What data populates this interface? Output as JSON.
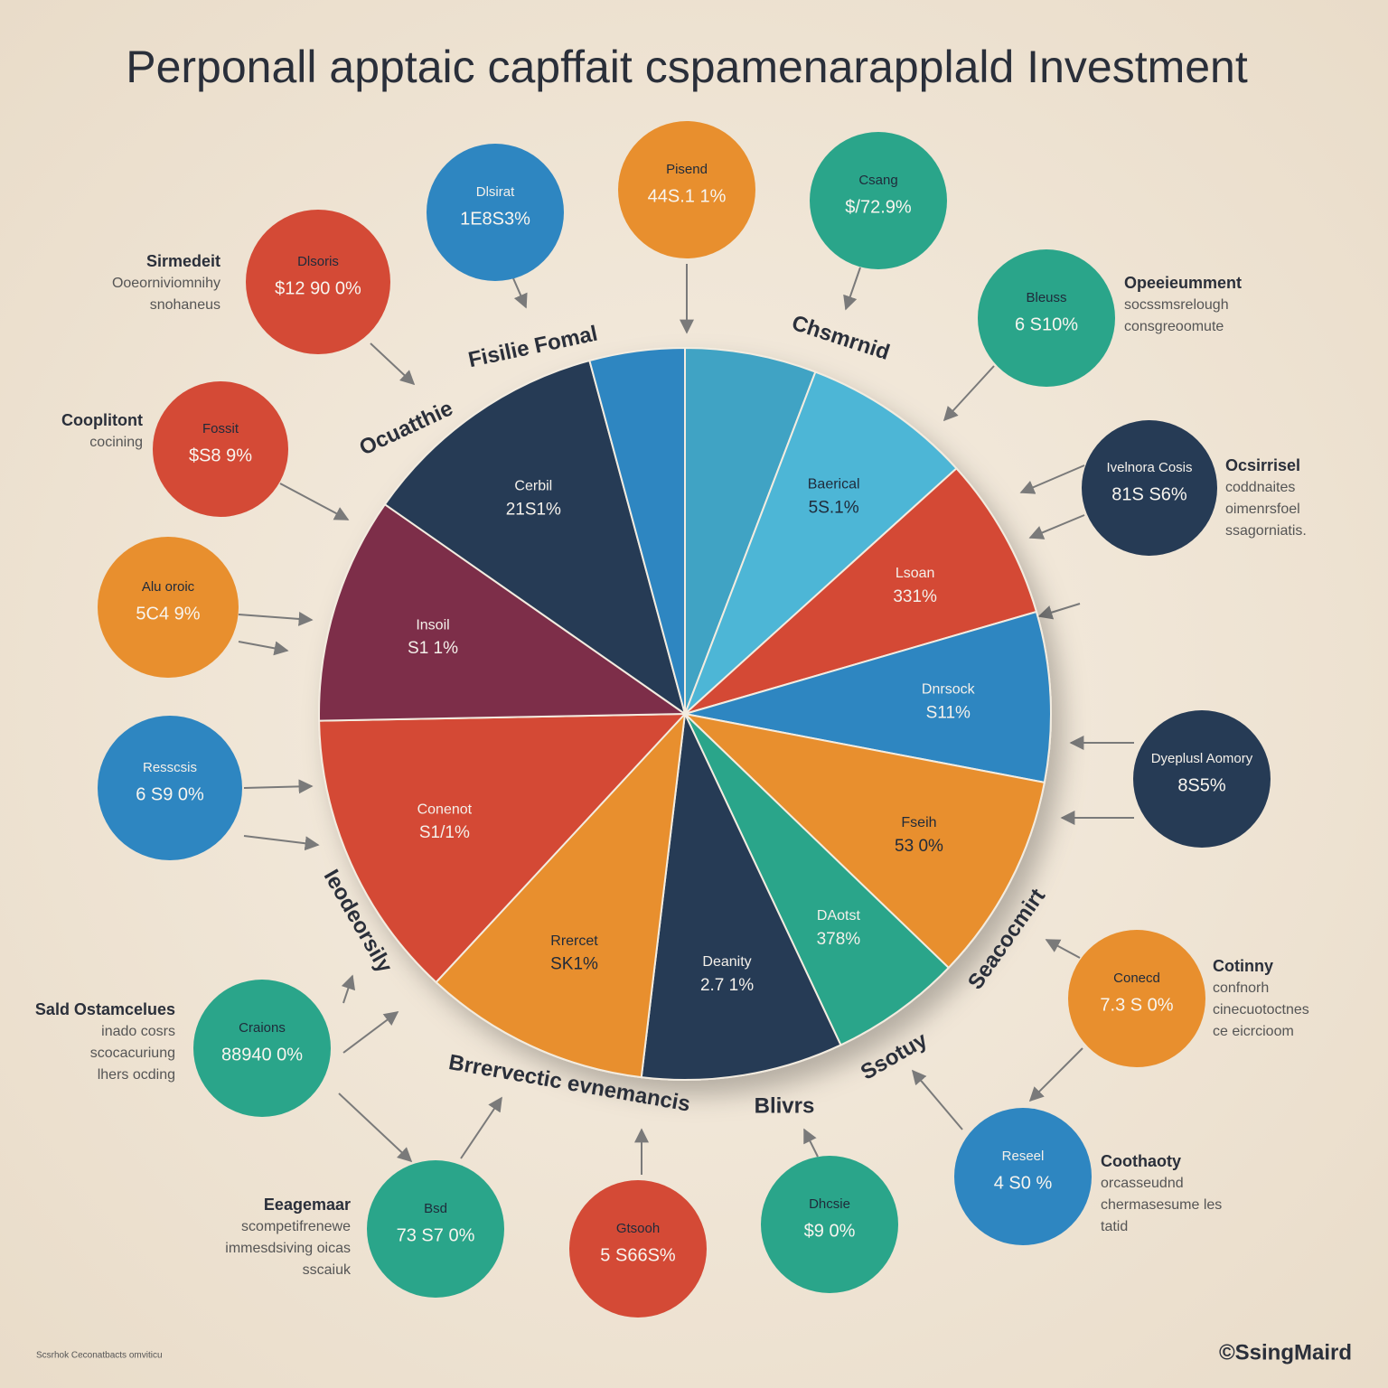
{
  "chart_data": {
    "type": "pie",
    "title": "Perponall apptaic capffait cspamenarapplald Investment",
    "values": [
      5.8,
      7.5,
      7.2,
      7.5,
      9.2,
      5.8,
      8.9,
      10,
      12.8,
      10,
      11.1,
      4.2
    ],
    "colors": [
      "#3fa3c4",
      "#4db6d6",
      "#d44a36",
      "#2e86c1",
      "#e88f2e",
      "#2aa58a",
      "#263b55",
      "#e88f2e",
      "#d44a36",
      "#7d2f4a",
      "#263b55",
      "#2e86c1"
    ],
    "categories": [
      null,
      "Baerical",
      "Lsoan",
      "Dnrsock",
      "Fseih",
      "DAotst",
      "Deanity",
      "Rrercet",
      "Conenot",
      "Insoil",
      "Cerbil",
      null
    ],
    "slice_value_texts": [
      null,
      "5S.1%",
      "331%",
      "S11%",
      "53 0%",
      "378%",
      "2.7 1%",
      "SK1%",
      "S1/1%",
      "S1 1%",
      "21S1%",
      null
    ],
    "outer_labels": [
      "Fisilie Fomal",
      "Chsmrnid",
      "Seacocmirt",
      "Ssotuy",
      "Blivrs",
      "Brrervectic evnemancis",
      "Ieodeorsily",
      "Ocuatthie"
    ],
    "bubbles": [
      {
        "name": "Dlsirat",
        "text": "1E8S3%",
        "color": "#2e86c1"
      },
      {
        "name": "Pisend",
        "text": "44S.1 1%",
        "color": "#e88f2e"
      },
      {
        "name": "Csang",
        "text": "$/72.9%",
        "color": "#2aa58a"
      },
      {
        "name": "Dlsoris",
        "text": "$12 90 0%",
        "color": "#d44a36"
      },
      {
        "name": "Bleuss",
        "text": "6 S10%",
        "color": "#2aa58a"
      },
      {
        "name": "Fossit",
        "text": "$S8 9%",
        "color": "#d44a36"
      },
      {
        "name": "Ivelnora Cosis",
        "text": "81S S6%",
        "color": "#263b55"
      },
      {
        "name": "Alu oroic",
        "text": "5C4 9%",
        "color": "#e88f2e"
      },
      {
        "name": "Dyeplusl Aomory",
        "text": "8S5%",
        "color": "#263b55"
      },
      {
        "name": "Resscsis",
        "text": "6 S9 0%",
        "color": "#2e86c1"
      },
      {
        "name": "Conecd",
        "text": "7.3 S 0%",
        "color": "#e88f2e"
      },
      {
        "name": "Craions",
        "text": "88940 0%",
        "color": "#2aa58a"
      },
      {
        "name": "Reseel",
        "text": "4 S0 %",
        "color": "#2e86c1"
      },
      {
        "name": "Bsd",
        "text": "73 S7 0%",
        "color": "#2aa58a"
      },
      {
        "name": "Gtsooh",
        "text": "5 S66S%",
        "color": "#d44a36"
      },
      {
        "name": "Dhcsie",
        "text": "$9 0%",
        "color": "#2aa58a"
      }
    ],
    "notes": [
      {
        "heading": "Sirmedeit",
        "lines": [
          "Ooeorniviomnihy",
          "snohaneus"
        ]
      },
      {
        "heading": "Opeeieumment",
        "lines": [
          "socssmsrelough",
          "consgreoomute"
        ]
      },
      {
        "heading": "Cooplitont",
        "lines": [
          "cocining"
        ]
      },
      {
        "heading": "Ocsirrisel",
        "lines": [
          "coddnaites",
          "oimenrsfoel",
          "ssagorniatis."
        ]
      },
      {
        "heading": "Cotinny",
        "lines": [
          "confnorh",
          "cinecuotoctnes",
          "ce eicrcioom"
        ]
      },
      {
        "heading": "Sald Ostamcelues",
        "lines": [
          "inado cosrs",
          "scocacuriung",
          "lhers ocding"
        ]
      },
      {
        "heading": "Coothaoty",
        "lines": [
          "orcasseudnd",
          "chermasesume les",
          "tatid"
        ]
      },
      {
        "heading": "Eeagemaar",
        "lines": [
          "scompetifrenewe",
          "immesdsiving oicas",
          "sscaiuk"
        ]
      }
    ],
    "footer_left": "Scsrhok Ceconatbacts omviticu",
    "footer_right": "©SsingMaird"
  }
}
